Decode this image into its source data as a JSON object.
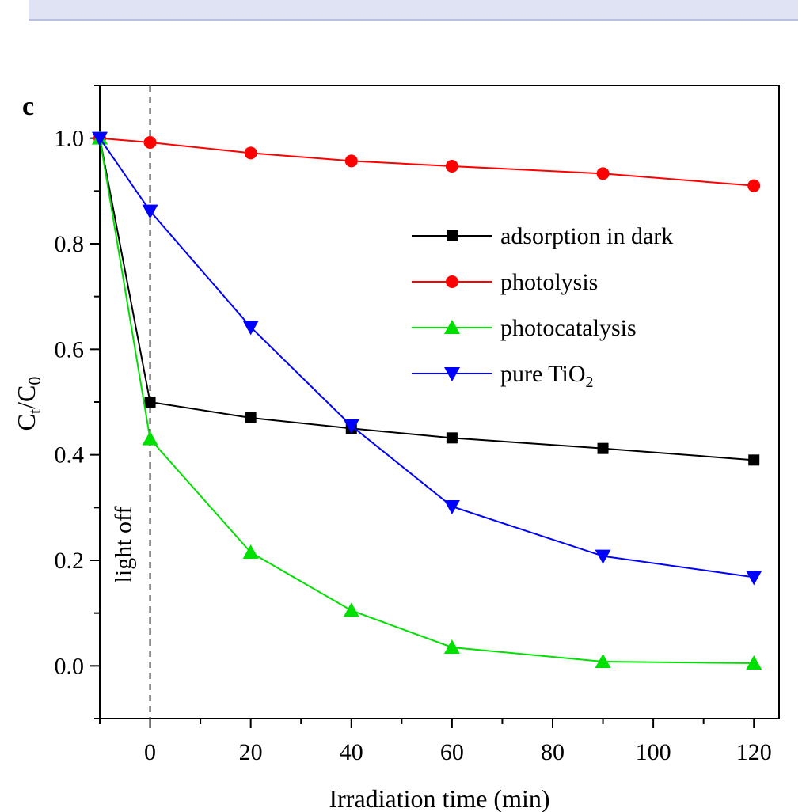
{
  "chart_data": {
    "type": "line",
    "panel_label": "c",
    "xlabel": "Irradiation time (min)",
    "ylabel_main": "C",
    "ylabel_sub1": "t",
    "ylabel_mid": "/C",
    "ylabel_sub2": "0",
    "xlim": [
      -10,
      125
    ],
    "ylim": [
      -0.1,
      1.1
    ],
    "xticks": [
      0,
      20,
      40,
      60,
      80,
      100,
      120
    ],
    "xtick_labels": [
      "0",
      "20",
      "40",
      "60",
      "80",
      "100",
      "120"
    ],
    "yticks": [
      0.0,
      0.2,
      0.4,
      0.6,
      0.8,
      1.0
    ],
    "ytick_labels": [
      "0.0",
      "0.2",
      "0.4",
      "0.6",
      "0.8",
      "1.0"
    ],
    "annotation": {
      "text": "light off",
      "x": 0
    },
    "legend_position": "upper-right",
    "x": [
      -10,
      0,
      20,
      40,
      60,
      90,
      120
    ],
    "series": [
      {
        "name": "adsorption in dark",
        "color": "#000000",
        "marker": "square",
        "values": [
          1.0,
          0.5,
          0.47,
          0.45,
          0.432,
          0.412,
          0.39
        ]
      },
      {
        "name": "photolysis",
        "color": "#ff0000",
        "marker": "circle",
        "values": [
          1.0,
          0.992,
          0.972,
          0.957,
          0.947,
          0.933,
          0.91
        ]
      },
      {
        "name": "photocatalysis",
        "color": "#00e000",
        "marker": "triangle-up",
        "values": [
          1.0,
          0.43,
          0.215,
          0.105,
          0.035,
          0.008,
          0.005
        ]
      },
      {
        "name": "pure TiO",
        "name_sub": "2",
        "color": "#0000ff",
        "marker": "triangle-down",
        "values": [
          1.0,
          0.862,
          0.642,
          0.455,
          0.302,
          0.208,
          0.168
        ]
      }
    ]
  }
}
